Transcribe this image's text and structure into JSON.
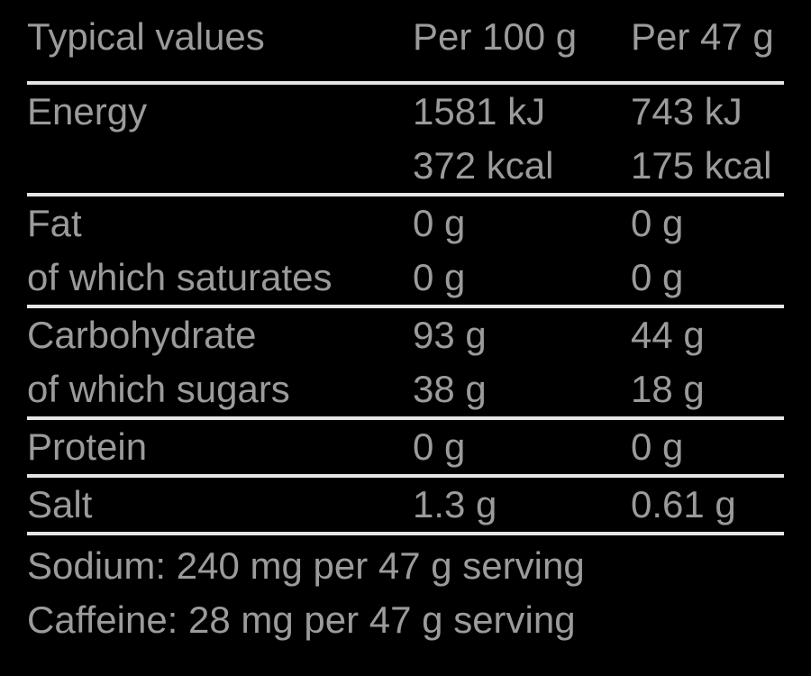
{
  "label": {
    "background_color": "#000000",
    "text_color": "#9b9b9b",
    "rule_color": "#e5e5e5",
    "table": {
      "header": {
        "typical_values": "Typical values",
        "per_100g": "Per 100 g",
        "per_47g": "Per 47 g"
      },
      "rows": [
        {
          "label": "Energy",
          "per_100g": "1581 kJ",
          "per_47g": "743 kJ"
        },
        {
          "label": "",
          "per_100g": "372 kcal",
          "per_47g": "175 kcal"
        },
        {
          "label": "Fat",
          "per_100g": "0 g",
          "per_47g": "0 g"
        },
        {
          "label": "of which saturates",
          "per_100g": "0 g",
          "per_47g": "0 g"
        },
        {
          "label": "Carbohydrate",
          "per_100g": "93 g",
          "per_47g": "44 g"
        },
        {
          "label": "of which sugars",
          "per_100g": "38 g",
          "per_47g": "18 g"
        },
        {
          "label": "Protein",
          "per_100g": "0 g",
          "per_47g": "0 g"
        },
        {
          "label": "Salt",
          "per_100g": "1.3 g",
          "per_47g": "0.61 g"
        }
      ],
      "footnotes": [
        "Sodium: 240 mg per 47 g serving",
        "Caffeine: 28 mg per 47 g serving"
      ]
    }
  }
}
